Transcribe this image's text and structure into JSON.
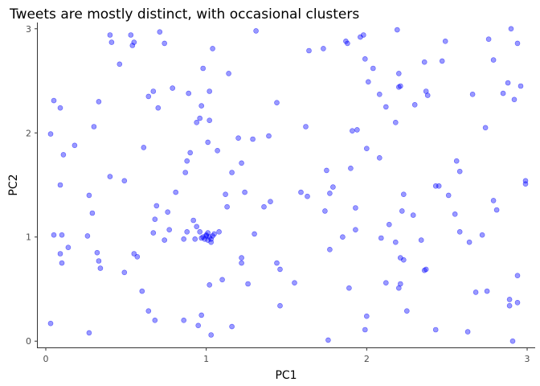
{
  "chart_data": {
    "type": "scatter",
    "title": "Tweets are mostly distinct, with occasional clusters",
    "xlabel": "PC1",
    "ylabel": "PC2",
    "xlim": [
      -0.05,
      3.05
    ],
    "ylim": [
      -0.06,
      3.06
    ],
    "x_ticks": [
      0,
      1,
      2,
      3
    ],
    "y_ticks": [
      0,
      1,
      2,
      3
    ],
    "x_tick_labels": [
      "0",
      "1",
      "2",
      "3"
    ],
    "y_tick_labels": [
      "0",
      "1",
      "2",
      "3"
    ],
    "grid": false,
    "point_color": "#0000ff",
    "point_opacity": 0.4,
    "points": [
      [
        0.03,
        0.17
      ],
      [
        0.27,
        0.08
      ],
      [
        0.68,
        0.2
      ],
      [
        0.64,
        0.29
      ],
      [
        0.6,
        0.48
      ],
      [
        0.86,
        0.2
      ],
      [
        0.95,
        0.15
      ],
      [
        0.97,
        0.25
      ],
      [
        1.03,
        0.06
      ],
      [
        1.16,
        0.14
      ],
      [
        1.02,
        0.54
      ],
      [
        1.1,
        0.59
      ],
      [
        1.46,
        0.34
      ],
      [
        1.76,
        0.01
      ],
      [
        1.89,
        0.51
      ],
      [
        2.0,
        0.24
      ],
      [
        1.99,
        0.11
      ],
      [
        2.12,
        0.56
      ],
      [
        2.2,
        0.51
      ],
      [
        2.21,
        0.55
      ],
      [
        2.25,
        0.29
      ],
      [
        2.43,
        0.11
      ],
      [
        2.63,
        0.09
      ],
      [
        2.68,
        0.47
      ],
      [
        2.75,
        0.48
      ],
      [
        2.89,
        0.4
      ],
      [
        2.89,
        0.34
      ],
      [
        2.91,
        0.0
      ],
      [
        2.94,
        0.37
      ],
      [
        2.94,
        0.63
      ],
      [
        0.05,
        1.02
      ],
      [
        0.09,
        0.84
      ],
      [
        0.1,
        1.02
      ],
      [
        0.1,
        0.75
      ],
      [
        0.14,
        0.9
      ],
      [
        0.26,
        1.01
      ],
      [
        0.32,
        0.85
      ],
      [
        0.33,
        0.77
      ],
      [
        0.34,
        0.7
      ],
      [
        0.49,
        0.66
      ],
      [
        0.55,
        0.84
      ],
      [
        0.57,
        0.81
      ],
      [
        0.67,
        1.04
      ],
      [
        0.68,
        1.17
      ],
      [
        0.74,
        0.97
      ],
      [
        0.77,
        1.07
      ],
      [
        0.86,
        0.98
      ],
      [
        0.88,
        1.05
      ],
      [
        0.92,
        1.16
      ],
      [
        0.93,
        0.98
      ],
      [
        0.94,
        1.1
      ],
      [
        0.96,
        1.05
      ],
      [
        0.97,
        0.99
      ],
      [
        0.98,
        1.0
      ],
      [
        0.99,
        0.98
      ],
      [
        1.0,
        1.02
      ],
      [
        1.01,
        1.04
      ],
      [
        1.02,
        1.0
      ],
      [
        1.03,
        0.95
      ],
      [
        1.04,
        1.01
      ],
      [
        1.05,
        1.03
      ],
      [
        1.03,
        0.98
      ],
      [
        1.01,
        0.97
      ],
      [
        1.0,
        1.01
      ],
      [
        1.08,
        1.05
      ],
      [
        1.3,
        1.03
      ],
      [
        1.22,
        0.8
      ],
      [
        1.22,
        0.75
      ],
      [
        1.26,
        0.55
      ],
      [
        1.44,
        0.75
      ],
      [
        1.46,
        0.69
      ],
      [
        1.55,
        0.56
      ],
      [
        1.77,
        0.88
      ],
      [
        1.85,
        1.0
      ],
      [
        1.93,
        1.07
      ],
      [
        2.09,
        0.99
      ],
      [
        2.14,
        1.12
      ],
      [
        2.18,
        0.95
      ],
      [
        2.21,
        0.8
      ],
      [
        2.23,
        0.78
      ],
      [
        2.22,
        1.25
      ],
      [
        2.29,
        1.21
      ],
      [
        2.34,
        0.97
      ],
      [
        2.36,
        0.68
      ],
      [
        2.37,
        0.69
      ],
      [
        2.55,
        1.22
      ],
      [
        2.58,
        1.05
      ],
      [
        2.64,
        0.95
      ],
      [
        2.72,
        1.02
      ],
      [
        2.79,
        1.35
      ],
      [
        2.81,
        1.26
      ],
      [
        0.03,
        1.99
      ],
      [
        0.05,
        2.31
      ],
      [
        0.09,
        2.24
      ],
      [
        0.09,
        1.5
      ],
      [
        0.11,
        1.79
      ],
      [
        0.18,
        1.88
      ],
      [
        0.27,
        1.4
      ],
      [
        0.29,
        1.23
      ],
      [
        0.3,
        2.06
      ],
      [
        0.33,
        2.3
      ],
      [
        0.4,
        1.58
      ],
      [
        0.49,
        1.54
      ],
      [
        0.61,
        1.86
      ],
      [
        0.64,
        2.35
      ],
      [
        0.67,
        2.4
      ],
      [
        0.69,
        1.3
      ],
      [
        0.7,
        2.24
      ],
      [
        0.76,
        1.24
      ],
      [
        0.79,
        2.43
      ],
      [
        0.81,
        1.43
      ],
      [
        0.87,
        1.62
      ],
      [
        0.88,
        1.73
      ],
      [
        0.89,
        2.38
      ],
      [
        0.9,
        1.81
      ],
      [
        0.94,
        2.1
      ],
      [
        0.96,
        2.14
      ],
      [
        0.97,
        2.26
      ],
      [
        1.01,
        1.91
      ],
      [
        1.02,
        2.12
      ],
      [
        1.02,
        2.4
      ],
      [
        1.07,
        1.83
      ],
      [
        1.12,
        1.41
      ],
      [
        1.13,
        1.29
      ],
      [
        1.16,
        1.62
      ],
      [
        1.2,
        1.95
      ],
      [
        1.22,
        1.71
      ],
      [
        1.24,
        1.43
      ],
      [
        1.29,
        1.94
      ],
      [
        1.36,
        1.29
      ],
      [
        1.39,
        1.97
      ],
      [
        1.4,
        1.34
      ],
      [
        1.44,
        2.29
      ],
      [
        1.59,
        1.43
      ],
      [
        1.63,
        1.39
      ],
      [
        1.62,
        2.06
      ],
      [
        1.74,
        1.25
      ],
      [
        1.75,
        1.64
      ],
      [
        1.77,
        1.42
      ],
      [
        1.79,
        1.48
      ],
      [
        1.9,
        1.66
      ],
      [
        1.91,
        2.02
      ],
      [
        1.94,
        2.03
      ],
      [
        1.93,
        1.28
      ],
      [
        2.0,
        1.85
      ],
      [
        2.08,
        1.76
      ],
      [
        2.08,
        2.37
      ],
      [
        2.12,
        2.25
      ],
      [
        2.18,
        2.1
      ],
      [
        2.2,
        2.44
      ],
      [
        2.21,
        2.45
      ],
      [
        2.23,
        1.41
      ],
      [
        2.3,
        2.27
      ],
      [
        2.37,
        2.4
      ],
      [
        2.38,
        2.36
      ],
      [
        2.43,
        1.49
      ],
      [
        2.45,
        1.49
      ],
      [
        2.51,
        1.4
      ],
      [
        2.56,
        1.73
      ],
      [
        2.58,
        1.63
      ],
      [
        2.66,
        2.37
      ],
      [
        2.74,
        2.05
      ],
      [
        2.85,
        2.38
      ],
      [
        2.92,
        2.32
      ],
      [
        2.99,
        1.54
      ],
      [
        2.99,
        1.51
      ],
      [
        0.4,
        2.94
      ],
      [
        0.41,
        2.87
      ],
      [
        0.46,
        2.66
      ],
      [
        0.53,
        2.94
      ],
      [
        0.54,
        2.84
      ],
      [
        0.55,
        2.87
      ],
      [
        0.71,
        2.97
      ],
      [
        0.74,
        2.86
      ],
      [
        0.98,
        2.62
      ],
      [
        1.04,
        2.81
      ],
      [
        1.14,
        2.57
      ],
      [
        1.31,
        2.98
      ],
      [
        1.64,
        2.79
      ],
      [
        1.73,
        2.81
      ],
      [
        1.87,
        2.88
      ],
      [
        1.88,
        2.86
      ],
      [
        1.96,
        2.92
      ],
      [
        1.98,
        2.94
      ],
      [
        1.99,
        2.71
      ],
      [
        2.01,
        2.49
      ],
      [
        2.04,
        2.62
      ],
      [
        2.19,
        2.99
      ],
      [
        2.2,
        2.57
      ],
      [
        2.36,
        2.68
      ],
      [
        2.47,
        2.69
      ],
      [
        2.49,
        2.88
      ],
      [
        2.76,
        2.9
      ],
      [
        2.79,
        2.7
      ],
      [
        2.88,
        2.48
      ],
      [
        2.9,
        3.0
      ],
      [
        2.94,
        2.86
      ],
      [
        2.96,
        2.45
      ]
    ]
  }
}
